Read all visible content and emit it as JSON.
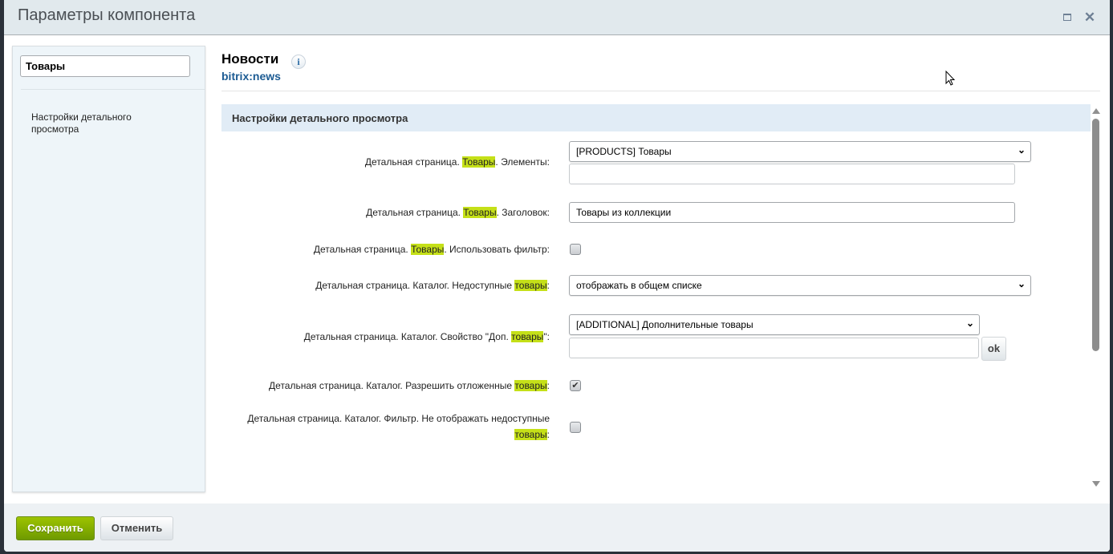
{
  "dialog": {
    "title": "Параметры компонента",
    "maximize_icon": "maximize-icon",
    "close_icon": "close-icon"
  },
  "sidebar": {
    "search_value": "Товары",
    "items": [
      {
        "label": "Настройки детального просмотра"
      }
    ]
  },
  "component": {
    "name": "Новости",
    "code": "bitrix:news",
    "info_icon": "i"
  },
  "section": {
    "title": "Настройки детального просмотра"
  },
  "highlight_color": "#c5e018",
  "fields": [
    {
      "pre": "Детальная страница. ",
      "hl": "Товары",
      "post": ". Элементы:",
      "select": "[PRODUCTS] Товары",
      "input": ""
    },
    {
      "pre": "Детальная страница. ",
      "hl": "Товары",
      "post": ". Заголовок:",
      "input": "Товары из коллекции"
    },
    {
      "pre": "Детальная страница. ",
      "hl": "Товары",
      "post": ". Использовать фильтр:",
      "checked": false
    },
    {
      "pre": "Детальная страница. Каталог. Недоступные ",
      "hl": "товары",
      "post": ":",
      "select": "отображать в общем списке"
    },
    {
      "pre": "Детальная страница. Каталог. Свойство \"Доп. ",
      "hl": "товары",
      "post": "\":",
      "select": "[ADDITIONAL] Дополнительные товары",
      "input": "",
      "ok": "ok"
    },
    {
      "pre": "Детальная страница. Каталог. Разрешить отложенные ",
      "hl": "товары",
      "post": ":",
      "checked": true
    },
    {
      "pre": "Детальная страница. Каталог. Фильтр. Не отображать недоступные ",
      "hl": "товары",
      "post": ":",
      "checked": false
    }
  ],
  "footer": {
    "save": "Сохранить",
    "cancel": "Отменить"
  }
}
